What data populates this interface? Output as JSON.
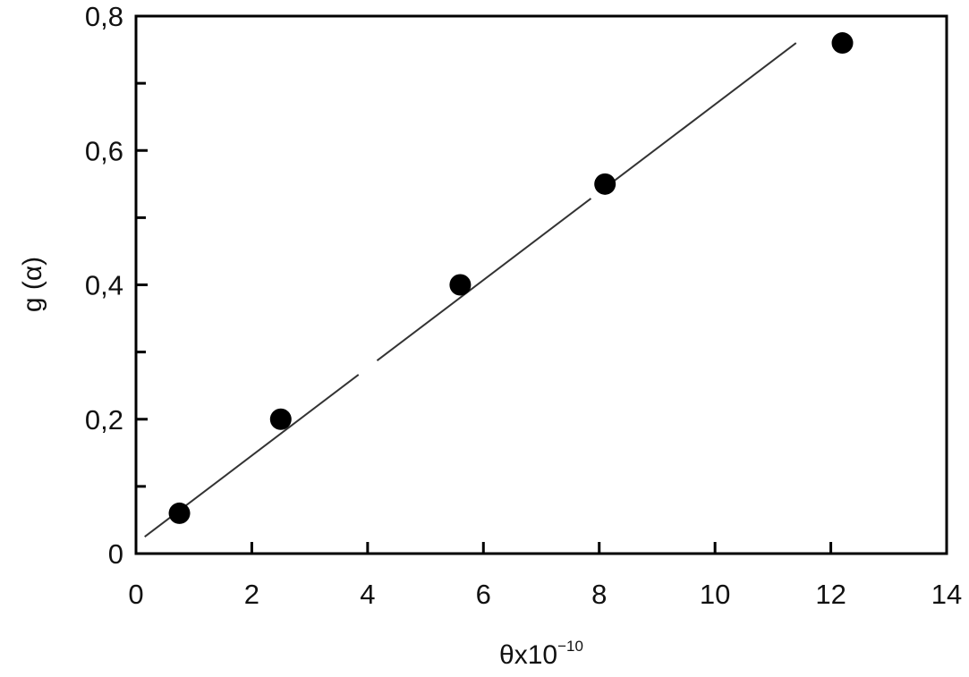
{
  "chart_data": {
    "type": "scatter",
    "xlabel": "θx10",
    "xlabel_superscript": "−10",
    "ylabel": "g (α)",
    "xlim": [
      0,
      14
    ],
    "ylim": [
      0,
      0.8
    ],
    "x_ticks": [
      0,
      2,
      4,
      6,
      8,
      10,
      12,
      14
    ],
    "x_tick_labels": [
      "0",
      "2",
      "4",
      "6",
      "8",
      "10",
      "12",
      "14"
    ],
    "y_ticks": [
      0,
      0.2,
      0.4,
      0.6,
      0.8
    ],
    "y_tick_labels": [
      "0",
      "0,2",
      "0,4",
      "0,6",
      "0,8"
    ],
    "y_minor_ticks": [
      0.1,
      0.3,
      0.5,
      0.7
    ],
    "grid": false,
    "legend": "none",
    "marker_color": "#000000",
    "line_color": "#333333",
    "series": [
      {
        "points": [
          {
            "x": 0.75,
            "y": 0.06
          },
          {
            "x": 2.5,
            "y": 0.2
          },
          {
            "x": 5.6,
            "y": 0.4
          },
          {
            "x": 8.1,
            "y": 0.55
          },
          {
            "x": 12.2,
            "y": 0.76
          }
        ]
      }
    ],
    "fit_line": {
      "x": [
        0.15,
        11.4
      ],
      "y": [
        0.025,
        0.76
      ],
      "style": "dashed"
    }
  }
}
